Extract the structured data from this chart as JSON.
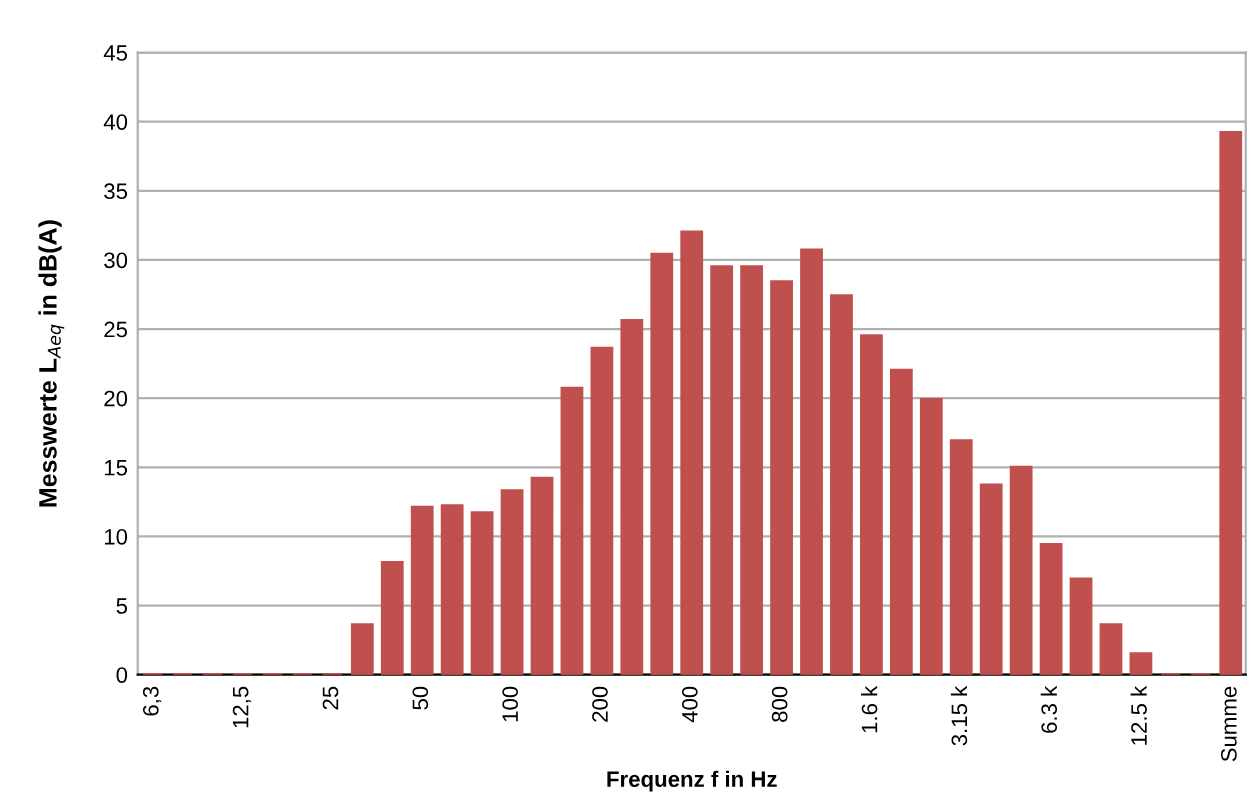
{
  "chart_data": {
    "type": "bar",
    "xlabel": "Frequenz f in Hz",
    "ylabel": "Messwerte L$_{Aeq}$ in dB(A)",
    "categories": [
      "6,3",
      null,
      null,
      "12,5",
      null,
      null,
      "25",
      null,
      null,
      "50",
      null,
      null,
      "100",
      null,
      null,
      "200",
      null,
      null,
      "400",
      null,
      null,
      "800",
      null,
      null,
      "1.6 k",
      null,
      null,
      "3.15 k",
      null,
      null,
      "6.3 k",
      null,
      null,
      "12.5 k",
      null,
      null,
      "Summe"
    ],
    "values": [
      0,
      0,
      0,
      0,
      0,
      0,
      0,
      3.6,
      8.1,
      12.1,
      12.2,
      11.7,
      13.3,
      14.2,
      20.7,
      23.6,
      25.6,
      30.4,
      32.0,
      29.5,
      29.5,
      28.4,
      30.7,
      27.4,
      24.5,
      22.0,
      19.9,
      16.9,
      13.7,
      15.0,
      9.4,
      6.9,
      3.6,
      1.5,
      0,
      0,
      39.2
    ],
    "color": "#c0504d",
    "ylim": [
      0,
      45
    ],
    "yticks": [
      0,
      5,
      10,
      15,
      20,
      25,
      30,
      35,
      40,
      45
    ],
    "grid": "y"
  }
}
